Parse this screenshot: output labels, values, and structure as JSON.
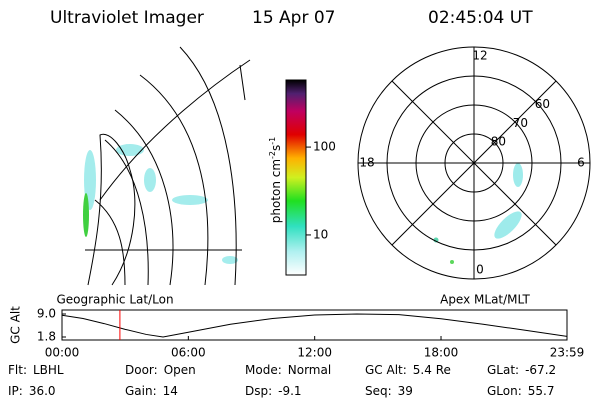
{
  "header": {
    "title": "Ultraviolet Imager",
    "date": "15 Apr 07",
    "time": "02:45:04 UT"
  },
  "map": {
    "label": "Geographic Lat/Lon"
  },
  "colorbar": {
    "label": [
      "photon cm",
      "-2",
      "s",
      "-1"
    ],
    "scale": "log",
    "lim": [
      3.5,
      580
    ],
    "ticks": [
      10,
      100
    ]
  },
  "polar": {
    "label": "Apex MLat/MLT",
    "lim": [
      90,
      50
    ],
    "lat_ticks": [
      80,
      70,
      60
    ],
    "mlt_ticks": [
      12,
      6,
      0,
      18
    ]
  },
  "chart_data": {
    "type": "line",
    "ylabel": "GC Alt",
    "x": [
      0,
      1,
      2,
      3,
      4,
      4.8,
      6,
      8,
      10,
      12,
      14,
      16,
      18,
      20,
      22,
      23.98
    ],
    "series": [
      {
        "name": "GC Alt",
        "color": "#000000",
        "values": [
          8.6,
          7.6,
          6.0,
          4.2,
          2.6,
          1.8,
          3.3,
          5.8,
          7.6,
          8.7,
          9.0,
          8.8,
          7.5,
          5.8,
          3.9,
          2.0
        ]
      }
    ],
    "marker_x": 2.75,
    "marker_color": "#ff0000",
    "xlim": [
      0,
      23.983
    ],
    "xticks": [
      {
        "value": 0,
        "label": "00:00"
      },
      {
        "value": 6,
        "label": "06:00"
      },
      {
        "value": 12,
        "label": "12:00"
      },
      {
        "value": 18,
        "label": "18:00"
      },
      {
        "value": 23.983,
        "label": "23:59"
      }
    ],
    "ylim": [
      0.86,
      10.25
    ],
    "yticks": [
      {
        "value": 9,
        "label": "9.0"
      },
      {
        "value": 1.8,
        "label": "1.8"
      }
    ]
  },
  "info": [
    [
      {
        "label": "Flt:",
        "value": "LBHL"
      },
      {
        "label": "Door:",
        "value": "Open"
      },
      {
        "label": "Mode:",
        "value": "Normal"
      },
      {
        "label": "GC Alt:",
        "value": "5.4 Re"
      },
      {
        "label": "GLat:",
        "value": "-67.2"
      }
    ],
    [
      {
        "label": "IP:",
        "value": "36.0"
      },
      {
        "label": "Gain:",
        "value": "14"
      },
      {
        "label": "Dsp:",
        "value": "-9.1"
      },
      {
        "label": "Seq:",
        "value": "39"
      },
      {
        "label": "GLon:",
        "value": "55.7"
      }
    ]
  ]
}
